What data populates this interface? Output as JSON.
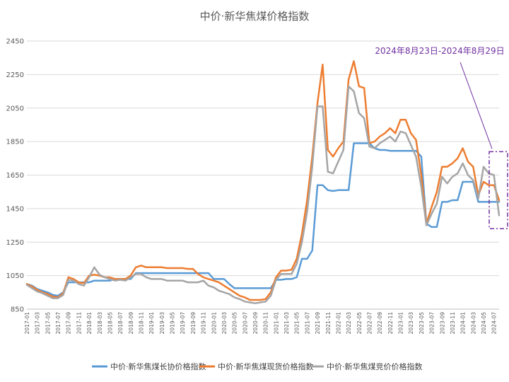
{
  "chart_data": {
    "type": "line",
    "title": "中价·新华焦煤价格指数",
    "xlabel": "",
    "ylabel": "",
    "ylim": [
      850,
      2450
    ],
    "yticks": [
      850,
      1050,
      1250,
      1450,
      1650,
      1850,
      2050,
      2250,
      2450
    ],
    "grid": "horizontal",
    "legend_position": "bottom",
    "x": [
      "2017-01",
      "2017-02",
      "2017-03",
      "2017-04",
      "2017-05",
      "2017-06",
      "2017-07",
      "2017-08",
      "2017-09",
      "2017-10",
      "2017-11",
      "2017-12",
      "2018-01",
      "2018-02",
      "2018-03",
      "2018-04",
      "2018-05",
      "2018-06",
      "2018-07",
      "2018-08",
      "2018-09",
      "2018-10",
      "2018-11",
      "2018-12",
      "2019-01",
      "2019-02",
      "2019-03",
      "2019-04",
      "2019-05",
      "2019-06",
      "2019-07",
      "2019-08",
      "2019-09",
      "2019-10",
      "2019-11",
      "2019-12",
      "2020-01",
      "2020-02",
      "2020-03",
      "2020-04",
      "2020-05",
      "2020-06",
      "2020-07",
      "2020-08",
      "2020-09",
      "2020-10",
      "2020-11",
      "2020-12",
      "2021-01",
      "2021-02",
      "2021-03",
      "2021-04",
      "2021-05",
      "2021-06",
      "2021-07",
      "2021-08",
      "2021-09",
      "2021-10",
      "2021-11",
      "2021-12",
      "2022-01",
      "2022-02",
      "2022-03",
      "2022-04",
      "2022-05",
      "2022-06",
      "2022-07",
      "2022-08",
      "2022-09",
      "2022-10",
      "2022-11",
      "2022-12",
      "2023-01",
      "2023-02",
      "2023-03",
      "2023-04",
      "2023-05",
      "2023-06",
      "2023-07",
      "2023-08",
      "2023-09",
      "2023-10",
      "2023-11",
      "2023-12",
      "2024-01",
      "2024-02",
      "2024-03",
      "2024-04",
      "2024-05",
      "2024-06",
      "2024-07",
      "2024-08"
    ],
    "xtick_labels": [
      "2017-01",
      "2017-03",
      "2017-05",
      "2017-07",
      "2017-09",
      "2017-11",
      "2018-01",
      "2018-03",
      "2018-05",
      "2018-07",
      "2018-09",
      "2018-11",
      "2019-01",
      "2019-03",
      "2019-05",
      "2019-07",
      "2019-09",
      "2019-11",
      "2020-01",
      "2020-03",
      "2020-05",
      "2020-07",
      "2020-09",
      "2020-11",
      "2021-01",
      "2021-03",
      "2021-05",
      "2021-07",
      "2021-09",
      "2021-11",
      "2022-01",
      "2022-03",
      "2022-05",
      "2022-07",
      "2022-09",
      "2022-11",
      "2023-01",
      "2023-03",
      "2023-05",
      "2023-07",
      "2023-09",
      "2023-11",
      "2024-01",
      "2024-03",
      "2024-05",
      "2024-07"
    ],
    "series": [
      {
        "name": "中价·新华焦煤长协价格指数",
        "color": "#5b9bd5",
        "values": [
          1000,
          990,
          970,
          960,
          950,
          935,
          930,
          950,
          1010,
          1010,
          1010,
          1010,
          1010,
          1020,
          1020,
          1020,
          1020,
          1030,
          1030,
          1030,
          1030,
          1065,
          1065,
          1065,
          1065,
          1065,
          1065,
          1065,
          1065,
          1065,
          1065,
          1065,
          1065,
          1065,
          1065,
          1065,
          1030,
          1030,
          1030,
          1000,
          975,
          975,
          975,
          975,
          975,
          975,
          975,
          975,
          1025,
          1025,
          1030,
          1030,
          1040,
          1150,
          1150,
          1200,
          1590,
          1590,
          1560,
          1555,
          1560,
          1560,
          1560,
          1840,
          1840,
          1840,
          1840,
          1810,
          1800,
          1800,
          1795,
          1795,
          1795,
          1795,
          1795,
          1795,
          1760,
          1360,
          1340,
          1340,
          1490,
          1490,
          1500,
          1500,
          1610,
          1610,
          1610,
          1490,
          1490,
          1490,
          1490,
          1490
        ]
      },
      {
        "name": "中价·新华焦煤现货价格指数",
        "color": "#ed7d31",
        "values": [
          1000,
          985,
          965,
          950,
          940,
          925,
          920,
          945,
          1040,
          1030,
          1010,
          1005,
          1050,
          1055,
          1050,
          1040,
          1040,
          1030,
          1030,
          1030,
          1050,
          1100,
          1110,
          1100,
          1100,
          1100,
          1100,
          1095,
          1095,
          1095,
          1095,
          1090,
          1090,
          1060,
          1040,
          1030,
          1020,
          1010,
          990,
          970,
          950,
          930,
          920,
          905,
          905,
          905,
          910,
          950,
          1040,
          1080,
          1080,
          1085,
          1150,
          1300,
          1500,
          1760,
          2080,
          2310,
          1800,
          1760,
          1810,
          1850,
          2220,
          2330,
          2180,
          2170,
          1840,
          1850,
          1880,
          1900,
          1930,
          1900,
          1980,
          1980,
          1900,
          1860,
          1650,
          1360,
          1460,
          1550,
          1700,
          1700,
          1720,
          1750,
          1810,
          1730,
          1700,
          1530,
          1610,
          1590,
          1590,
          1500
        ]
      },
      {
        "name": "中价·新华焦煤竞价价格指数",
        "color": "#a5a5a5",
        "values": [
          995,
          975,
          955,
          945,
          930,
          915,
          915,
          935,
          1025,
          1020,
          1000,
          990,
          1040,
          1100,
          1055,
          1040,
          1030,
          1020,
          1025,
          1020,
          1040,
          1060,
          1060,
          1040,
          1030,
          1030,
          1030,
          1020,
          1020,
          1020,
          1020,
          1010,
          1010,
          1010,
          1020,
          990,
          980,
          960,
          950,
          940,
          920,
          910,
          895,
          890,
          885,
          890,
          895,
          930,
          1025,
          1060,
          1060,
          1060,
          1120,
          1250,
          1430,
          1700,
          2060,
          2060,
          1670,
          1660,
          1730,
          1800,
          2180,
          2150,
          2020,
          1990,
          1820,
          1810,
          1840,
          1860,
          1880,
          1850,
          1910,
          1900,
          1830,
          1760,
          1580,
          1350,
          1420,
          1480,
          1640,
          1600,
          1640,
          1660,
          1720,
          1650,
          1620,
          1510,
          1700,
          1660,
          1650,
          1410
        ]
      }
    ],
    "annotation": {
      "text": "2024年8月23日-2024年8月29日",
      "color": "#7030a0",
      "box_y_range": [
        1330,
        1790
      ],
      "box_x": "2024-08"
    }
  }
}
